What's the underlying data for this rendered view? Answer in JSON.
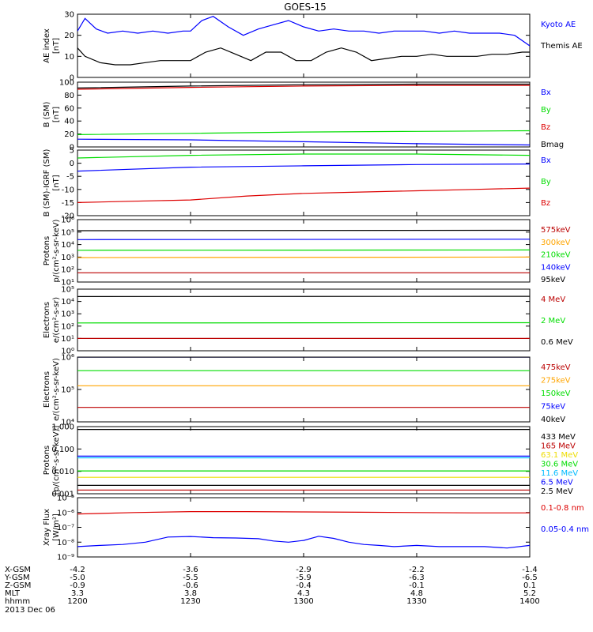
{
  "title": "GOES-15",
  "date_label": "2013 Dec 06",
  "x_axis": {
    "row_labels": [
      "X-GSM",
      "Y-GSM",
      "Z-GSM",
      "MLT",
      "hhmm"
    ],
    "ticks": [
      {
        "time": 1200,
        "values": [
          "-4.2",
          "-5.0",
          "-0.9",
          "3.3",
          "1200"
        ]
      },
      {
        "time": 1230,
        "values": [
          "-3.6",
          "-5.5",
          "-0.6",
          "3.8",
          "1230"
        ]
      },
      {
        "time": 1300,
        "values": [
          "-2.9",
          "-5.9",
          "-0.4",
          "4.3",
          "1300"
        ]
      },
      {
        "time": 1330,
        "values": [
          "-2.2",
          "-6.3",
          "-0.1",
          "4.8",
          "1330"
        ]
      },
      {
        "time": 1400,
        "values": [
          "-1.4",
          "-6.5",
          "0.1",
          "5.2",
          "1400"
        ]
      }
    ]
  },
  "colors": {
    "black": "#000000",
    "blue": "#0000ff",
    "red": "#dd0000",
    "green": "#00dd00",
    "orange": "#ffa500",
    "yellow": "#eedd00",
    "cyan": "#00bbff",
    "darkred": "#bb0000"
  },
  "chart_data": [
    {
      "type": "line",
      "ylabel": "AE index",
      "yunit": "[nT]",
      "yscale": "linear",
      "ylim": [
        0,
        30
      ],
      "yticks": [
        "0",
        "10",
        "20",
        "30"
      ],
      "series": [
        {
          "name": "Kyoto AE",
          "color": "#0000ff",
          "x": [
            1200,
            1202,
            1205,
            1208,
            1212,
            1216,
            1220,
            1224,
            1228,
            1230,
            1233,
            1236,
            1240,
            1244,
            1248,
            1252,
            1256,
            1300,
            1304,
            1308,
            1312,
            1316,
            1320,
            1324,
            1328,
            1332,
            1336,
            1340,
            1344,
            1348,
            1352,
            1356,
            1400
          ],
          "y": [
            22,
            28,
            23,
            21,
            22,
            21,
            22,
            21,
            22,
            22,
            27,
            29,
            24,
            20,
            23,
            25,
            27,
            24,
            22,
            23,
            22,
            22,
            21,
            22,
            22,
            22,
            21,
            22,
            21,
            21,
            21,
            20,
            15
          ]
        },
        {
          "name": "Themis AE",
          "color": "#000000",
          "x": [
            1200,
            1202,
            1206,
            1210,
            1214,
            1218,
            1222,
            1226,
            1230,
            1234,
            1238,
            1242,
            1246,
            1250,
            1254,
            1258,
            1302,
            1306,
            1310,
            1314,
            1318,
            1322,
            1326,
            1330,
            1334,
            1338,
            1342,
            1346,
            1350,
            1354,
            1358,
            1400
          ],
          "y": [
            14,
            10,
            7,
            6,
            6,
            7,
            8,
            8,
            8,
            12,
            14,
            11,
            8,
            12,
            12,
            8,
            8,
            12,
            14,
            12,
            8,
            9,
            10,
            10,
            11,
            10,
            10,
            10,
            11,
            11,
            12,
            12
          ]
        }
      ]
    },
    {
      "type": "line",
      "ylabel": "B (SM)",
      "yunit": "[nT]",
      "yscale": "linear",
      "ylim": [
        0,
        100
      ],
      "yticks": [
        "0",
        "20",
        "40",
        "60",
        "80",
        "100"
      ],
      "series": [
        {
          "name": "Bx",
          "color": "#0000ff",
          "x": [
            1200,
            1230,
            1300,
            1330,
            1400
          ],
          "y": [
            12,
            11,
            8,
            5,
            3
          ]
        },
        {
          "name": "By",
          "color": "#00dd00",
          "x": [
            1200,
            1230,
            1300,
            1330,
            1400
          ],
          "y": [
            19,
            21,
            23,
            24,
            25
          ]
        },
        {
          "name": "Bz",
          "color": "#dd0000",
          "x": [
            1200,
            1230,
            1300,
            1330,
            1400
          ],
          "y": [
            89,
            92,
            94,
            95,
            95
          ]
        },
        {
          "name": "Bmag",
          "color": "#000000",
          "x": [
            1200,
            1230,
            1300,
            1330,
            1400
          ],
          "y": [
            91,
            94,
            96,
            97,
            97
          ]
        }
      ]
    },
    {
      "type": "line",
      "ylabel": "B (SM)-IGRF (SM)",
      "yunit": "[nT]",
      "yscale": "linear",
      "ylim": [
        -20,
        5
      ],
      "yticks": [
        "-20",
        "-15",
        "-10",
        "-5",
        "0",
        "5"
      ],
      "series": [
        {
          "name": "Bx",
          "color": "#0000ff",
          "x": [
            1200,
            1230,
            1300,
            1330,
            1400
          ],
          "y": [
            -3,
            -1.5,
            -1,
            -0.5,
            -0.3
          ]
        },
        {
          "name": "By",
          "color": "#00dd00",
          "x": [
            1200,
            1230,
            1300,
            1330,
            1400
          ],
          "y": [
            2,
            3,
            3.5,
            3.5,
            3
          ]
        },
        {
          "name": "Bz",
          "color": "#dd0000",
          "x": [
            1200,
            1215,
            1230,
            1245,
            1300,
            1315,
            1330,
            1345,
            1400
          ],
          "y": [
            -15,
            -14.5,
            -14,
            -12.5,
            -11.5,
            -11,
            -10.5,
            -10,
            -9.5
          ]
        }
      ]
    },
    {
      "type": "line",
      "ylabel": "Protons",
      "yunit": "p/(cm²-s-sr-keV)",
      "yscale": "log",
      "ylim": [
        10,
        1000000
      ],
      "yticks": [
        "10¹",
        "10²",
        "10³",
        "10⁴",
        "10⁵",
        "10⁶"
      ],
      "series": [
        {
          "name": "575keV",
          "color": "#bb0000",
          "x": [
            1200,
            1400
          ],
          "y": [
            55,
            55
          ]
        },
        {
          "name": "300keV",
          "color": "#ffa500",
          "x": [
            1200,
            1400
          ],
          "y": [
            900,
            1000
          ]
        },
        {
          "name": "210keV",
          "color": "#00dd00",
          "x": [
            1200,
            1400
          ],
          "y": [
            3500,
            3700
          ]
        },
        {
          "name": "140keV",
          "color": "#0000ff",
          "x": [
            1200,
            1400
          ],
          "y": [
            25000,
            27000
          ]
        },
        {
          "name": "95keV",
          "color": "#000000",
          "x": [
            1200,
            1400
          ],
          "y": [
            130000,
            140000
          ]
        }
      ]
    },
    {
      "type": "line",
      "ylabel": "Electrons",
      "yunit": "e/(cm²-s-sr)",
      "yscale": "log",
      "ylim": [
        1,
        100000
      ],
      "yticks": [
        "10⁰",
        "10¹",
        "10²",
        "10³",
        "10⁴",
        "10⁵"
      ],
      "series": [
        {
          "name": "4 MeV",
          "color": "#bb0000",
          "x": [
            1200,
            1400
          ],
          "y": [
            10,
            10
          ]
        },
        {
          "name": "2 MeV",
          "color": "#00dd00",
          "x": [
            1200,
            1400
          ],
          "y": [
            180,
            190
          ]
        },
        {
          "name": "0.6 MeV",
          "color": "#000000",
          "x": [
            1200,
            1400
          ],
          "y": [
            25000,
            26000
          ]
        }
      ]
    },
    {
      "type": "line",
      "ylabel": "Electrons",
      "yunit": "e/(cm²-s-sr-keV)",
      "yscale": "log",
      "ylim": [
        10000,
        1000000
      ],
      "yticks": [
        "10⁴",
        "10⁵",
        "10⁶"
      ],
      "series": [
        {
          "name": "475keV",
          "color": "#bb0000",
          "x": [
            1200,
            1400
          ],
          "y": [
            28000,
            28000
          ]
        },
        {
          "name": "275keV",
          "color": "#ffa500",
          "x": [
            1200,
            1400
          ],
          "y": [
            130000,
            130000
          ]
        },
        {
          "name": "150keV",
          "color": "#00dd00",
          "x": [
            1200,
            1400
          ],
          "y": [
            380000,
            380000
          ]
        },
        {
          "name": "75keV",
          "color": "#0000ff",
          "x": [
            1200,
            1400
          ],
          "y": [
            1000000,
            1000000
          ]
        },
        {
          "name": "40keV",
          "color": "#000000",
          "x": [
            1200,
            1400
          ],
          "y": [
            1000000,
            1000000
          ]
        }
      ]
    },
    {
      "type": "line",
      "ylabel": "Protons",
      "yunit": "[p/(cm²-s-sr-keV)]",
      "yscale": "log",
      "ylim": [
        0.001,
        1.5
      ],
      "yticks": [
        "0.001",
        "0.010",
        "0.100",
        "1.000"
      ],
      "series": [
        {
          "name": "433 MeV",
          "color": "#000000",
          "x": [
            1200,
            1400
          ],
          "y": [
            1.1,
            1.1
          ]
        },
        {
          "name": "165 MeV",
          "color": "#bb0000",
          "x": [
            1200,
            1400
          ],
          "y": [
            0.0015,
            0.0015
          ]
        },
        {
          "name": "63.1 MeV",
          "color": "#eedd00",
          "x": [
            1200,
            1400
          ],
          "y": [
            0.006,
            0.006
          ]
        },
        {
          "name": "30.6 MeV",
          "color": "#00dd00",
          "x": [
            1200,
            1400
          ],
          "y": [
            0.012,
            0.012
          ]
        },
        {
          "name": "11.6 MeV",
          "color": "#00bbff",
          "x": [
            1200,
            1400
          ],
          "y": [
            0.05,
            0.05
          ]
        },
        {
          "name": "6.5 MeV",
          "color": "#0000ff",
          "x": [
            1200,
            1400
          ],
          "y": [
            0.06,
            0.06
          ]
        },
        {
          "name": "2.5 MeV",
          "color": "#000000",
          "x": [
            1200,
            1400
          ],
          "y": [
            0.0025,
            0.0025
          ]
        }
      ]
    },
    {
      "type": "line",
      "ylabel": "Xray Flux",
      "yunit": "[W/m²]",
      "yscale": "log",
      "ylim": [
        1e-09,
        1e-05
      ],
      "yticks": [
        "10⁻⁹",
        "10⁻⁸",
        "10⁻⁷",
        "10⁻⁶",
        "10⁻⁵"
      ],
      "series": [
        {
          "name": "0.1-0.8 nm",
          "color": "#dd0000",
          "x": [
            1200,
            1215,
            1230,
            1245,
            1300,
            1315,
            1330,
            1345,
            1400
          ],
          "y": [
            8e-07,
            1e-06,
            1.15e-06,
            1.15e-06,
            1.1e-06,
            1.05e-06,
            1e-06,
            9.5e-07,
            9.5e-07
          ]
        },
        {
          "name": "0.05-0.4 nm",
          "color": "#0000ff",
          "x": [
            1200,
            1206,
            1212,
            1218,
            1224,
            1230,
            1236,
            1242,
            1248,
            1252,
            1256,
            1300,
            1304,
            1308,
            1312,
            1316,
            1320,
            1324,
            1330,
            1336,
            1342,
            1348,
            1354,
            1400
          ],
          "y": [
            5e-09,
            6e-09,
            7e-09,
            1e-08,
            2.2e-08,
            2.4e-08,
            2e-08,
            1.9e-08,
            1.7e-08,
            1.2e-08,
            1e-08,
            1.3e-08,
            2.5e-08,
            1.8e-08,
            1e-08,
            7e-09,
            6e-09,
            5e-09,
            6e-09,
            5e-09,
            5e-09,
            5e-09,
            4e-09,
            6e-09
          ]
        }
      ]
    }
  ]
}
